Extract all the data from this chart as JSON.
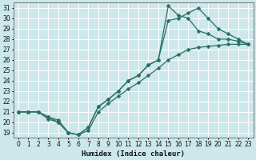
{
  "xlabel": "Humidex (Indice chaleur)",
  "bg_color": "#cce8ea",
  "grid_color": "#ffffff",
  "line_color": "#2a6e65",
  "xlim": [
    -0.5,
    23.5
  ],
  "ylim": [
    18.5,
    31.5
  ],
  "xticks": [
    0,
    1,
    2,
    3,
    4,
    5,
    6,
    7,
    8,
    9,
    10,
    11,
    12,
    13,
    14,
    15,
    16,
    17,
    18,
    19,
    20,
    21,
    22,
    23
  ],
  "yticks": [
    19,
    20,
    21,
    22,
    23,
    24,
    25,
    26,
    27,
    28,
    29,
    30,
    31
  ],
  "line1_x": [
    0,
    1,
    2,
    3,
    4,
    5,
    6,
    7,
    8,
    9,
    10,
    11,
    12,
    13,
    14,
    15,
    16,
    17,
    18,
    19,
    20,
    21,
    22,
    23
  ],
  "line1_y": [
    21.0,
    21.0,
    21.0,
    20.5,
    20.0,
    19.0,
    18.8,
    19.5,
    21.5,
    22.2,
    23.0,
    24.0,
    24.5,
    25.5,
    26.0,
    31.2,
    30.3,
    30.0,
    28.8,
    28.5,
    28.0,
    28.0,
    27.8,
    27.5
  ],
  "line2_x": [
    0,
    1,
    2,
    3,
    4,
    5,
    6,
    7,
    8,
    9,
    10,
    11,
    12,
    13,
    14,
    15,
    16,
    17,
    18,
    19,
    20,
    21,
    22,
    23
  ],
  "line2_y": [
    21.0,
    21.0,
    21.0,
    20.5,
    20.2,
    19.0,
    18.8,
    19.5,
    21.5,
    22.2,
    23.0,
    24.0,
    24.5,
    25.5,
    26.0,
    29.8,
    30.0,
    30.5,
    31.0,
    30.0,
    29.0,
    28.5,
    28.0,
    27.5
  ],
  "line3_x": [
    0,
    1,
    2,
    3,
    4,
    5,
    6,
    7,
    8,
    9,
    10,
    11,
    12,
    13,
    14,
    15,
    16,
    17,
    18,
    19,
    20,
    21,
    22,
    23
  ],
  "line3_y": [
    21.0,
    21.0,
    21.0,
    20.3,
    20.0,
    19.0,
    18.8,
    19.2,
    21.0,
    21.8,
    22.5,
    23.2,
    23.8,
    24.5,
    25.2,
    26.0,
    26.5,
    27.0,
    27.2,
    27.3,
    27.4,
    27.5,
    27.5,
    27.5
  ],
  "markersize": 2.5,
  "linewidth": 0.9
}
